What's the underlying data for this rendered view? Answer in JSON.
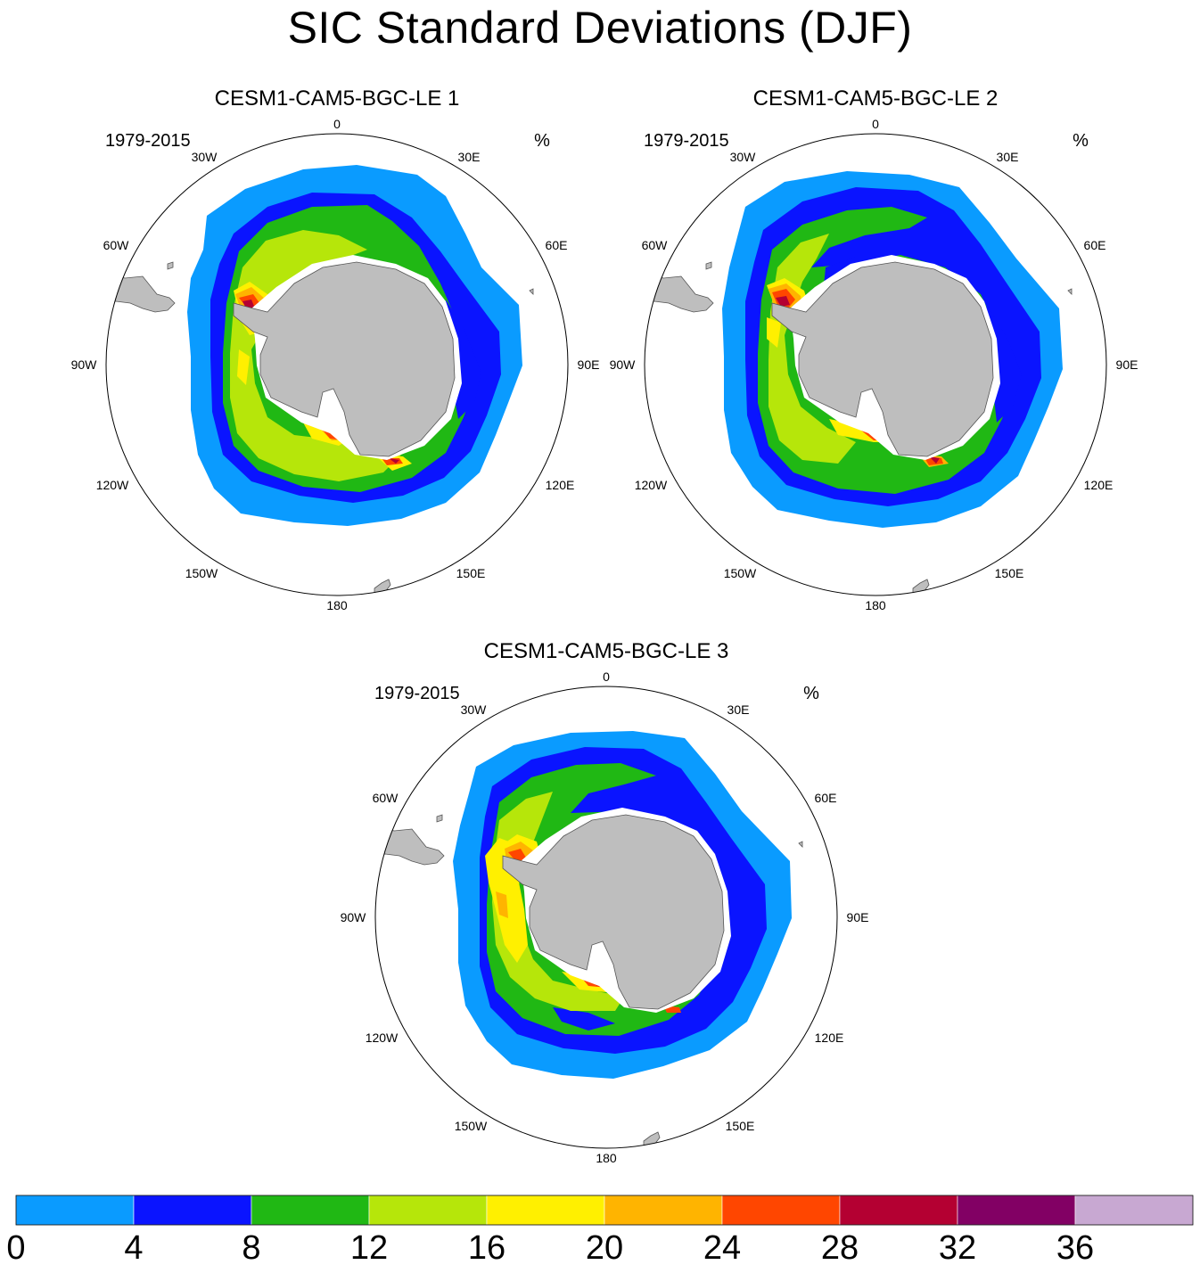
{
  "title": "SIC Standard Deviations (DJF)",
  "panels": [
    {
      "title": "CESM1-CAM5-BGC-LE 1",
      "period": "1979-2015",
      "units": "%",
      "lon_labels": [
        "0",
        "30E",
        "60E",
        "90E",
        "120E",
        "150E",
        "180",
        "150W",
        "120W",
        "90W",
        "60W",
        "30W"
      ]
    },
    {
      "title": "CESM1-CAM5-BGC-LE 2",
      "period": "1979-2015",
      "units": "%",
      "lon_labels": [
        "0",
        "30E",
        "60E",
        "90E",
        "120E",
        "150E",
        "180",
        "150W",
        "120W",
        "90W",
        "60W",
        "30W"
      ]
    },
    {
      "title": "CESM1-CAM5-BGC-LE 3",
      "period": "1979-2015",
      "units": "%",
      "lon_labels": [
        "0",
        "30E",
        "60E",
        "90E",
        "120E",
        "150E",
        "180",
        "150W",
        "120W",
        "90W",
        "60W",
        "30W"
      ]
    }
  ],
  "colorbar": {
    "ticks": [
      "0",
      "4",
      "8",
      "12",
      "16",
      "20",
      "24",
      "28",
      "32",
      "36"
    ],
    "colors": [
      "#0a9bff",
      "#0a14ff",
      "#20b814",
      "#b6e60a",
      "#fff000",
      "#ffb400",
      "#ff4600",
      "#b40032",
      "#820064",
      "#c8a8d2"
    ]
  },
  "palette": {
    "land": "#bebebe",
    "land_outline": "#555555",
    "shelf": "#ffffff",
    "grid": "#000000"
  }
}
